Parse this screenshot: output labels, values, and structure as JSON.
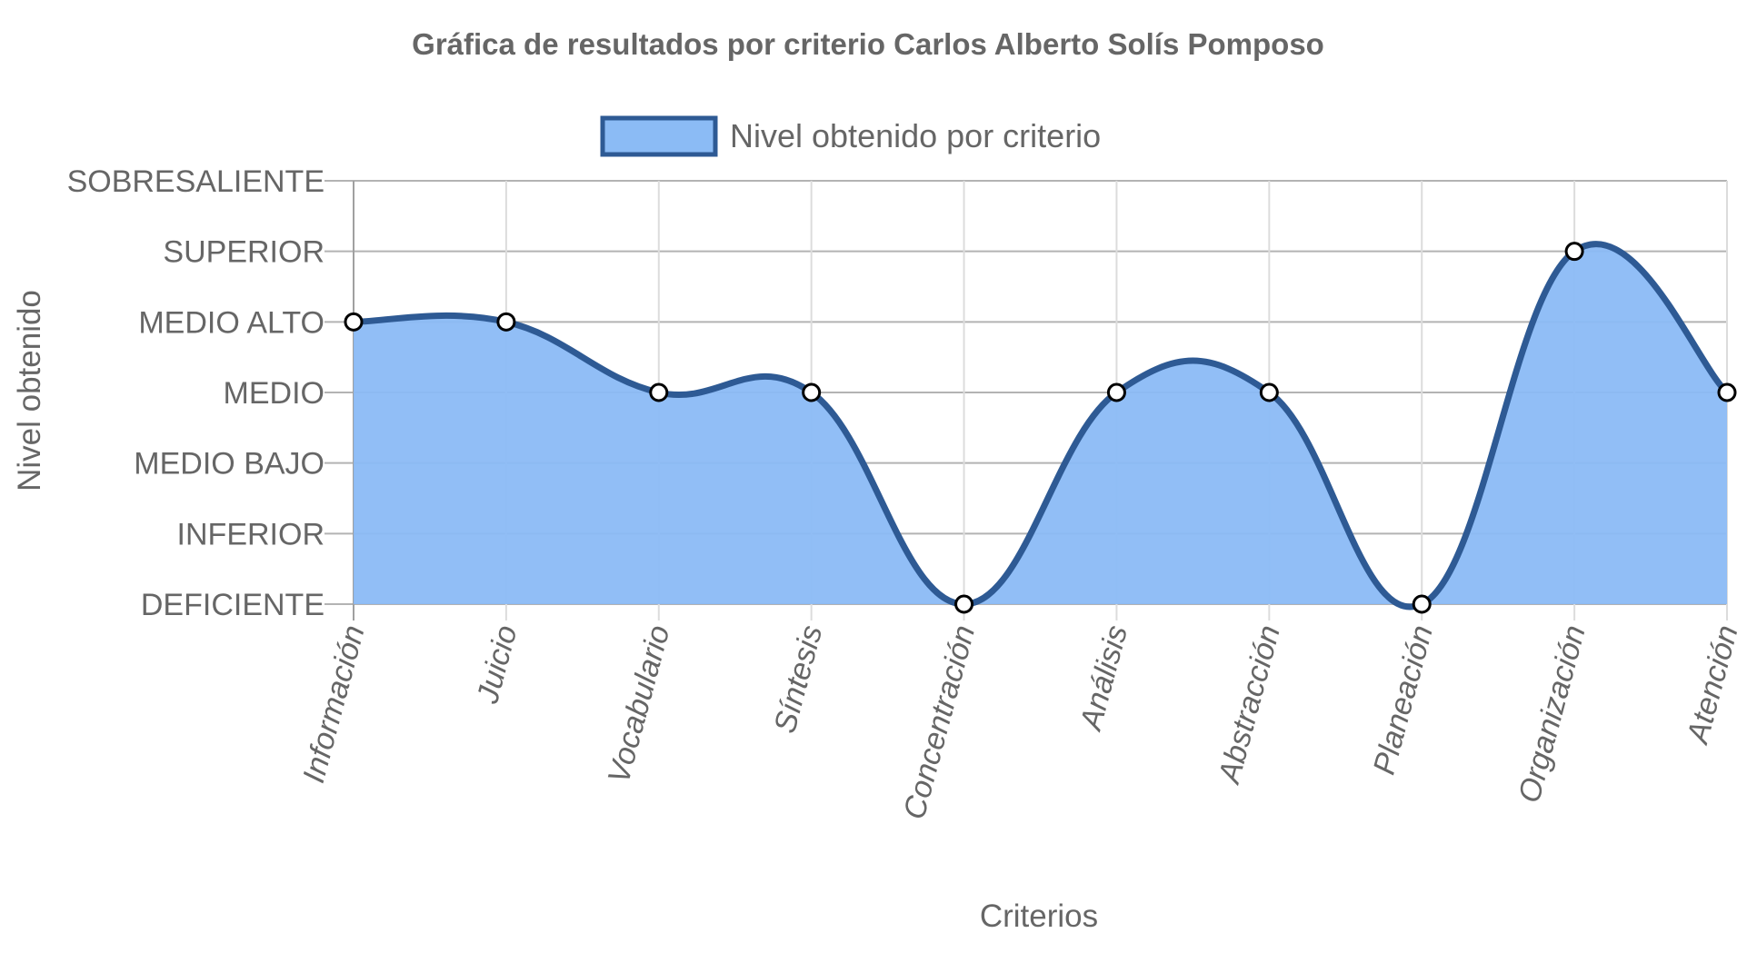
{
  "chart_data": {
    "type": "area",
    "title": "Gráfica de resultados por criterio Carlos Alberto Solís Pomposo",
    "xlabel": "Criterios",
    "ylabel": "Nivel obtenido",
    "y_levels": [
      "DEFICIENTE",
      "INFERIOR",
      "MEDIO BAJO",
      "MEDIO",
      "MEDIO ALTO",
      "SUPERIOR",
      "SOBRESALIENTE"
    ],
    "ylim": [
      1,
      7
    ],
    "categories": [
      "Información",
      "Juicio",
      "Vocabulario",
      "Síntesis",
      "Concentración",
      "Análisis",
      "Abstracción",
      "Planeación",
      "Organización",
      "Atención"
    ],
    "series": [
      {
        "name": "Nivel obtenido por criterio",
        "values": [
          5,
          5,
          4,
          4,
          1,
          4,
          4,
          1,
          6,
          4
        ],
        "fill_color": "#8bbbf5",
        "line_color": "#2e5a94"
      }
    ],
    "legend_position": "top",
    "grid": true
  }
}
